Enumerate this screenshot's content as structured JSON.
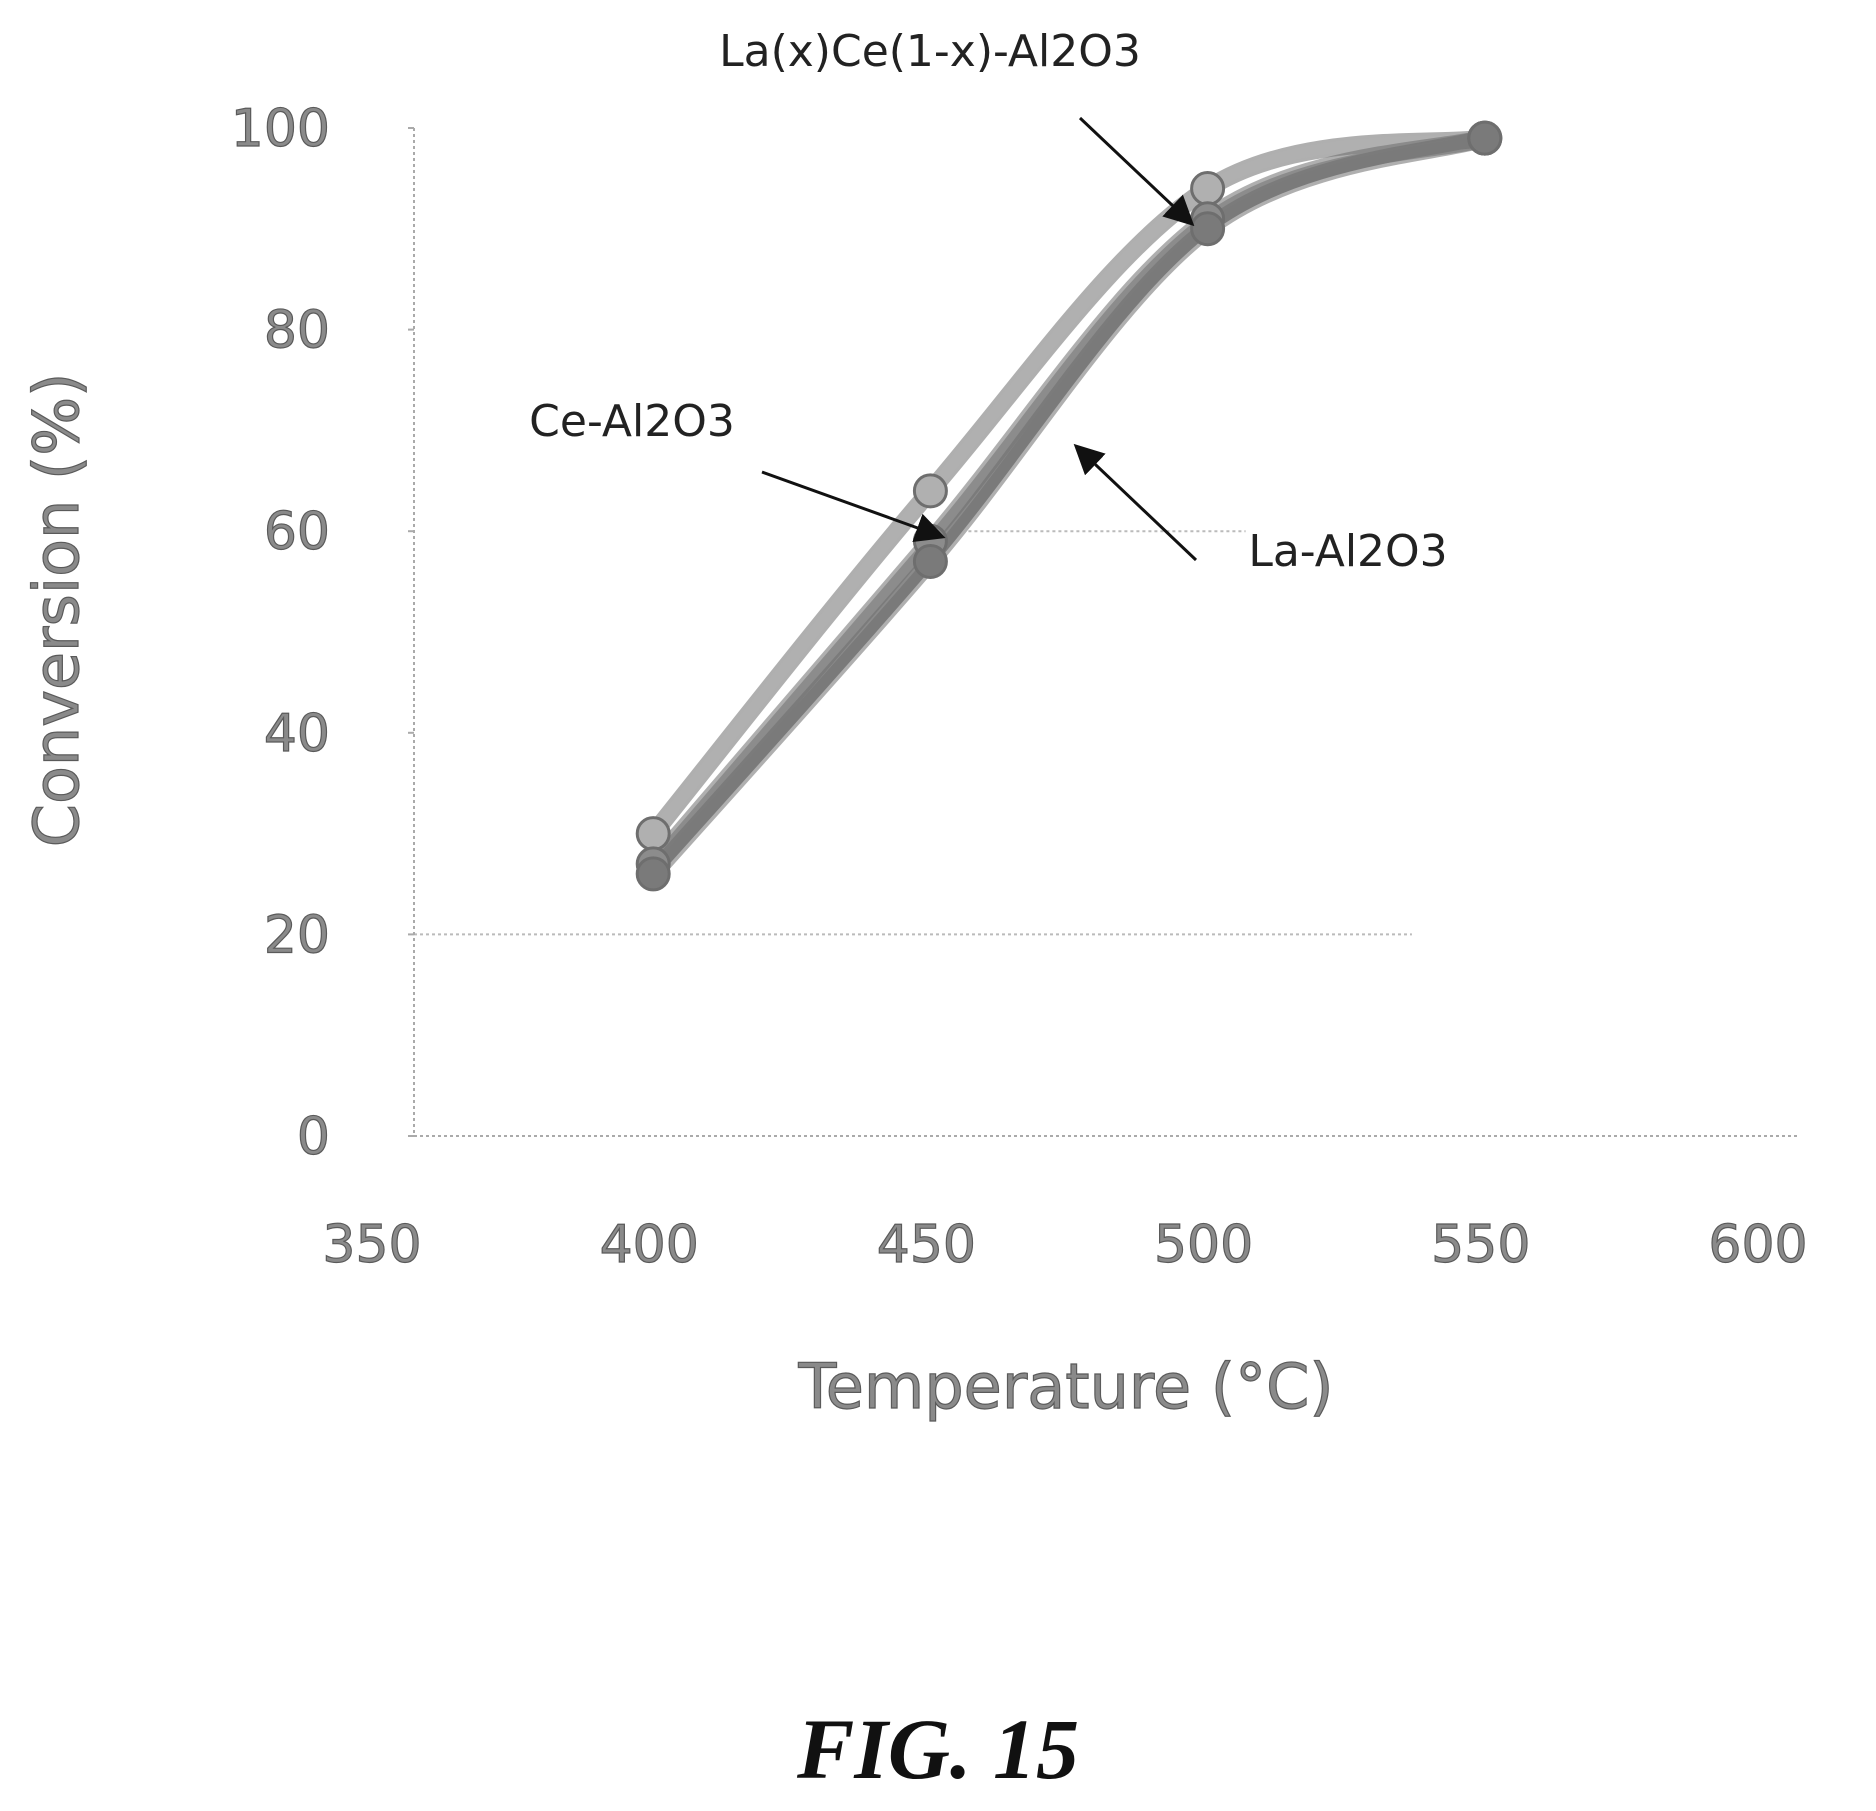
{
  "chart_data": {
    "type": "line",
    "xlabel": "Temperature (°C)",
    "ylabel": "Conversion (%)",
    "xlim": [
      350,
      600
    ],
    "ylim": [
      0,
      100
    ],
    "xticks": [
      "350",
      "400",
      "450",
      "500",
      "550",
      "600"
    ],
    "yticks": [
      "0",
      "20",
      "40",
      "60",
      "80",
      "100"
    ],
    "grid": "horizontal at 20 and 60",
    "series": [
      {
        "name": "La(x)Ce(1-x)-Al2O3",
        "x": [
          400,
          450,
          500,
          550
        ],
        "y": [
          30,
          64,
          94,
          99
        ],
        "color": "#b0b0b0"
      },
      {
        "name": "Ce-Al2O3",
        "x": [
          400,
          450,
          500,
          550
        ],
        "y": [
          27,
          59,
          91,
          99
        ],
        "color": "#8c8c8c"
      },
      {
        "name": "La-Al2O3",
        "x": [
          400,
          450,
          500,
          550
        ],
        "y": [
          26,
          57,
          90,
          99
        ],
        "color": "#7a7a7a"
      }
    ],
    "annotations": [
      {
        "text": "La(x)Ce(1-x)-Al2O3",
        "series": "La(x)Ce(1-x)-Al2O3"
      },
      {
        "text": "Ce-Al2O3",
        "series": "Ce-Al2O3"
      },
      {
        "text": "La-Al2O3",
        "series": "La-Al2O3"
      }
    ]
  },
  "figure_label": "FIG. 15"
}
